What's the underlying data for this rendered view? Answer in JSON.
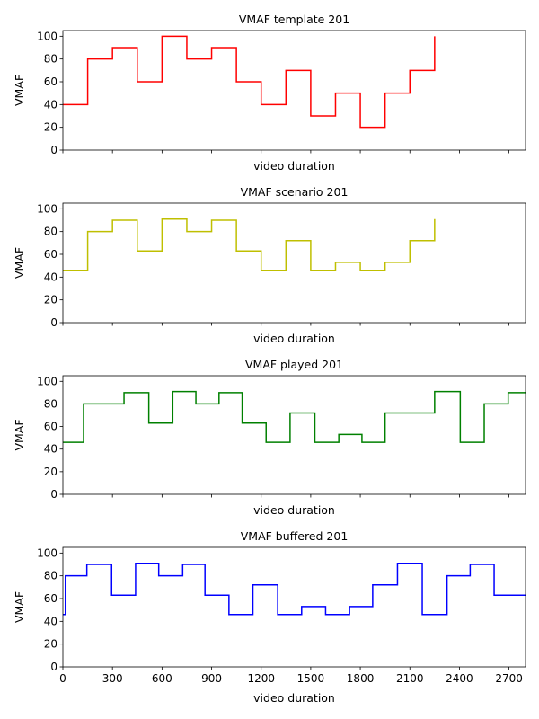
{
  "chart_data": [
    {
      "type": "line",
      "step": "post",
      "title": "VMAF template 201",
      "xlabel": "video duration",
      "ylabel": "VMAF",
      "color": "#ff0000",
      "xlim": [
        0,
        2800
      ],
      "ylim": [
        0,
        105
      ],
      "xticks": [
        0,
        300,
        600,
        900,
        1200,
        1500,
        1800,
        2100,
        2400,
        2700
      ],
      "yticks": [
        0,
        20,
        40,
        60,
        80,
        100
      ],
      "show_xtick_labels": false,
      "x": [
        0,
        150,
        300,
        450,
        600,
        750,
        900,
        1050,
        1200,
        1350,
        1500,
        1650,
        1800,
        1950,
        2100,
        2250
      ],
      "y": [
        40,
        80,
        90,
        60,
        100,
        80,
        90,
        60,
        40,
        70,
        30,
        50,
        20,
        50,
        70,
        100
      ]
    },
    {
      "type": "line",
      "step": "post",
      "title": "VMAF scenario 201",
      "xlabel": "video duration",
      "ylabel": "VMAF",
      "color": "#bfbf00",
      "xlim": [
        0,
        2800
      ],
      "ylim": [
        0,
        105
      ],
      "xticks": [
        0,
        300,
        600,
        900,
        1200,
        1500,
        1800,
        2100,
        2400,
        2700
      ],
      "yticks": [
        0,
        20,
        40,
        60,
        80,
        100
      ],
      "show_xtick_labels": false,
      "x": [
        0,
        150,
        300,
        450,
        600,
        750,
        900,
        1050,
        1200,
        1350,
        1500,
        1650,
        1800,
        1950,
        2100,
        2250
      ],
      "y": [
        46,
        80,
        90,
        63,
        91,
        80,
        90,
        63,
        46,
        72,
        46,
        53,
        46,
        53,
        72,
        91
      ]
    },
    {
      "type": "line",
      "step": "post",
      "title": "VMAF played 201",
      "xlabel": "video duration",
      "ylabel": "VMAF",
      "color": "#008000",
      "xlim": [
        0,
        2800
      ],
      "ylim": [
        0,
        105
      ],
      "xticks": [
        0,
        300,
        600,
        900,
        1200,
        1500,
        1800,
        2100,
        2400,
        2700
      ],
      "yticks": [
        0,
        20,
        40,
        60,
        80,
        100
      ],
      "show_xtick_labels": false,
      "x": [
        0,
        125,
        370,
        520,
        665,
        805,
        945,
        1085,
        1230,
        1375,
        1525,
        1670,
        1810,
        1950,
        2250,
        2405,
        2550,
        2695,
        2800
      ],
      "y": [
        46,
        80,
        90,
        63,
        91,
        80,
        90,
        63,
        46,
        72,
        46,
        53,
        46,
        72,
        91,
        46,
        80,
        90,
        90
      ]
    },
    {
      "type": "line",
      "step": "post",
      "title": "VMAF buffered 201",
      "xlabel": "video duration",
      "ylabel": "VMAF",
      "color": "#0000ff",
      "xlim": [
        0,
        2800
      ],
      "ylim": [
        0,
        105
      ],
      "xticks": [
        0,
        300,
        600,
        900,
        1200,
        1500,
        1800,
        2100,
        2400,
        2700
      ],
      "yticks": [
        0,
        20,
        40,
        60,
        80,
        100
      ],
      "show_xtick_labels": true,
      "x": [
        0,
        15,
        145,
        295,
        440,
        580,
        725,
        860,
        1005,
        1150,
        1300,
        1445,
        1590,
        1735,
        1875,
        2025,
        2175,
        2325,
        2465,
        2610,
        2800
      ],
      "y": [
        46,
        80,
        90,
        63,
        91,
        80,
        90,
        63,
        46,
        72,
        46,
        53,
        46,
        53,
        72,
        91,
        46,
        80,
        90,
        63,
        63
      ]
    }
  ]
}
